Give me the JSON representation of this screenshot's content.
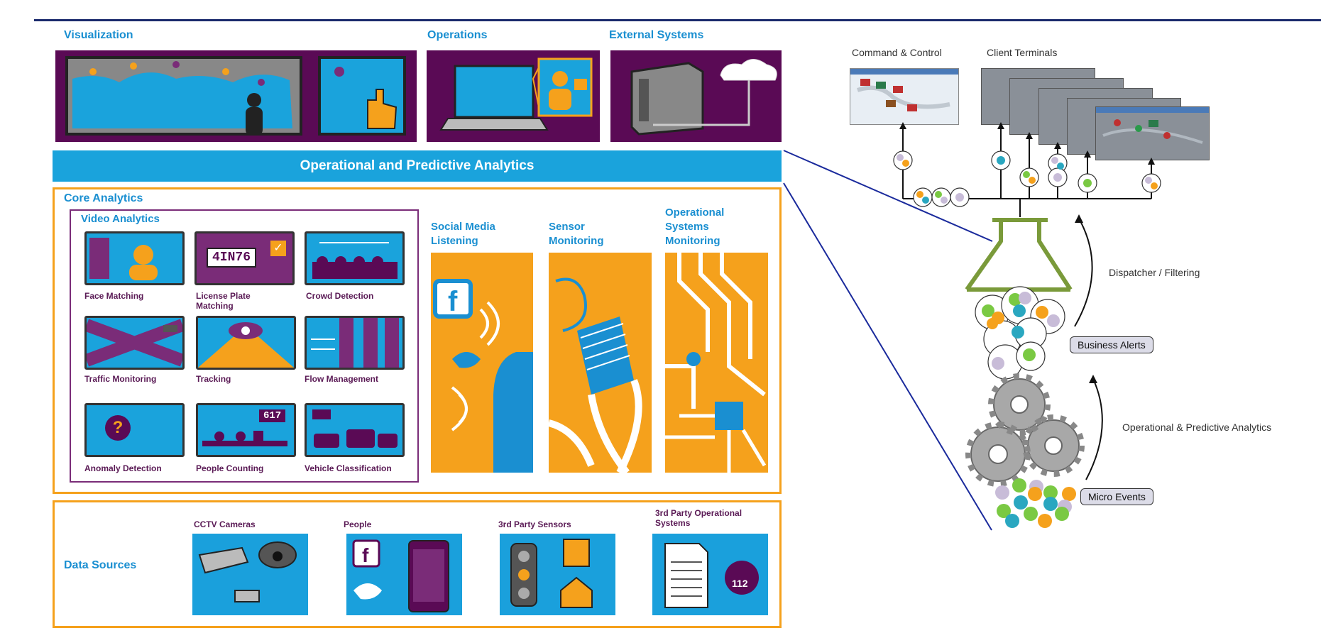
{
  "sections": {
    "visualization": "Visualization",
    "operations": "Operations",
    "external_systems": "External Systems",
    "band": "Operational and Predictive Analytics",
    "core_analytics": "Core Analytics",
    "video_analytics": "Video Analytics",
    "data_sources": "Data Sources"
  },
  "video_tiles": [
    {
      "label": "Face Matching"
    },
    {
      "label": "License Plate Matching",
      "plate": "4IN76"
    },
    {
      "label": "Crowd Detection"
    },
    {
      "label": "Traffic Monitoring"
    },
    {
      "label": "Tracking"
    },
    {
      "label": "Flow Management"
    },
    {
      "label": "Anomaly Detection",
      "symbol": "?"
    },
    {
      "label": "People Counting",
      "counter": "617"
    },
    {
      "label": "Vehicle Classification"
    }
  ],
  "monitoring": [
    {
      "label": "Social Media Listening"
    },
    {
      "label": "Sensor Monitoring"
    },
    {
      "label": "Operational Systems Monitoring"
    }
  ],
  "data_sources": [
    {
      "label": "CCTV Cameras"
    },
    {
      "label": "People"
    },
    {
      "label": "3rd Party Sensors"
    },
    {
      "label": "3rd Party Operational Systems",
      "badge": "112"
    }
  ],
  "right_panel": {
    "command_control": "Command & Control",
    "client_terminals": "Client Terminals",
    "dispatcher": "Dispatcher / Filtering",
    "business_alerts": "Business Alerts",
    "op_analytics": "Operational & Predictive Analytics",
    "micro_events": "Micro Events"
  },
  "colors": {
    "purple": "#5a0a55",
    "blue": "#1aa3dc",
    "orange": "#f5a11c",
    "green": "#7ac943",
    "teal": "#2aa7c0",
    "lavender": "#c8bcd8",
    "flask": "#7a9a3a"
  }
}
